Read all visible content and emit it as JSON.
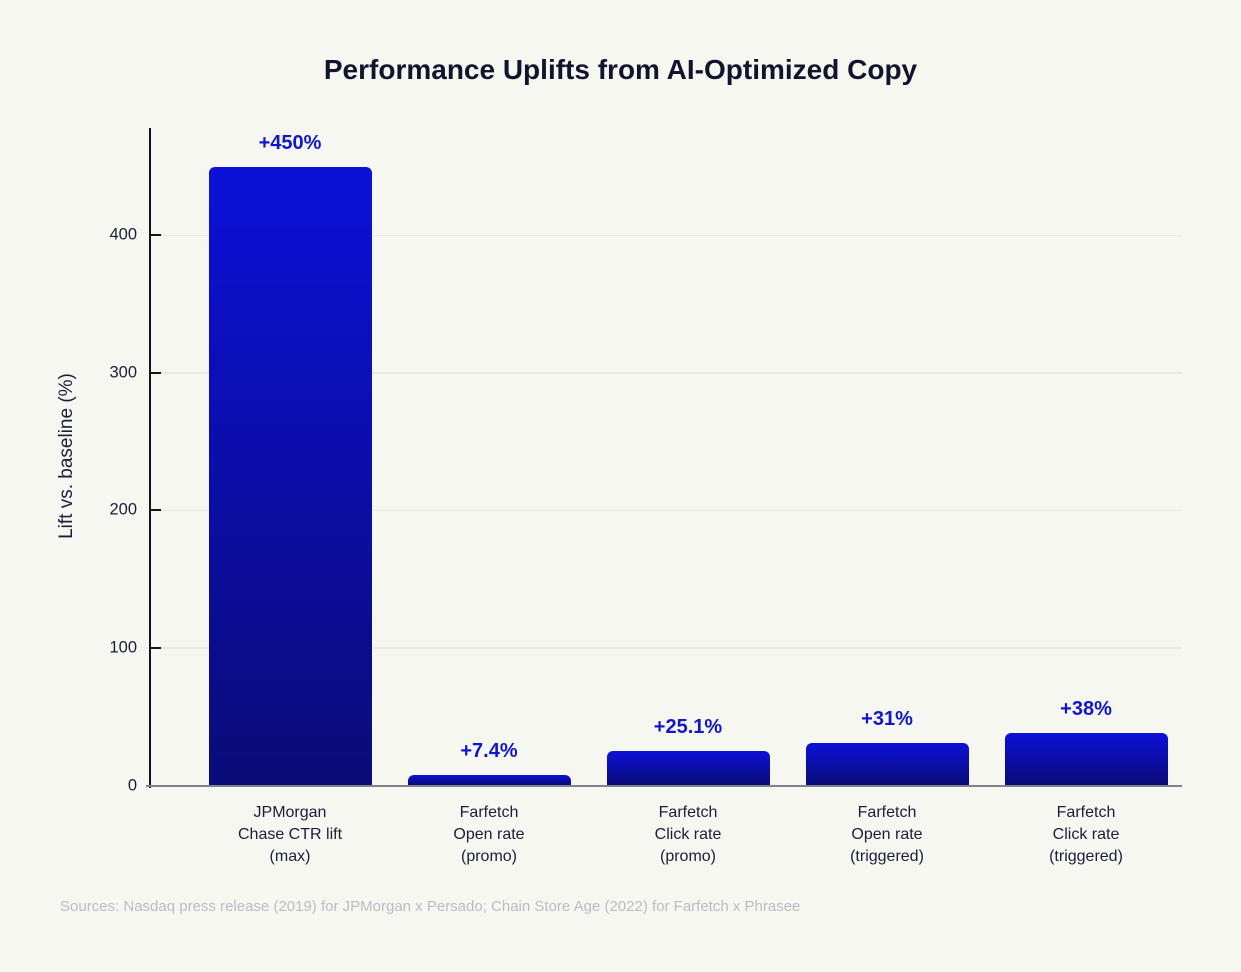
{
  "title": "Performance Uplifts from AI-Optimized Copy",
  "chart_data": {
    "type": "bar",
    "categories": [
      [
        "JPMorgan",
        "Chase CTR lift",
        "(max)"
      ],
      [
        "Farfetch",
        "Open rate",
        "(promo)"
      ],
      [
        "Farfetch",
        "Click rate",
        "(promo)"
      ],
      [
        "Farfetch",
        "Open rate",
        "(triggered)"
      ],
      [
        "Farfetch",
        "Click rate",
        "(triggered)"
      ]
    ],
    "values": [
      450,
      7.4,
      25.1,
      31,
      38
    ],
    "bar_labels": [
      "+450%",
      "+7.4%",
      "+25.1%",
      "+31%",
      "+38%"
    ],
    "ylabel": "Lift vs. baseline (%)",
    "yticks": [
      0,
      100,
      200,
      300,
      400
    ],
    "ylim": [
      0,
      478
    ],
    "grid": "horizontal-only",
    "legend": "none"
  },
  "source_note": "Sources: Nasdaq press release (2019) for JPMorgan x Persado; Chain Store Age (2022) for Farfetch x Phrasee",
  "colors": {
    "background": "#f7f7f1",
    "title_text": "#12142e",
    "axis_text": "#1b1e38",
    "bar_gradient_top": "#0c11d8",
    "bar_gradient_bottom": "#0a0b77",
    "value_label": "#1016cd",
    "gridline": "#e8e9e2",
    "baseline": "#7e838d",
    "axis_spine": "#14141c",
    "source_text": "#b8bcc6"
  }
}
